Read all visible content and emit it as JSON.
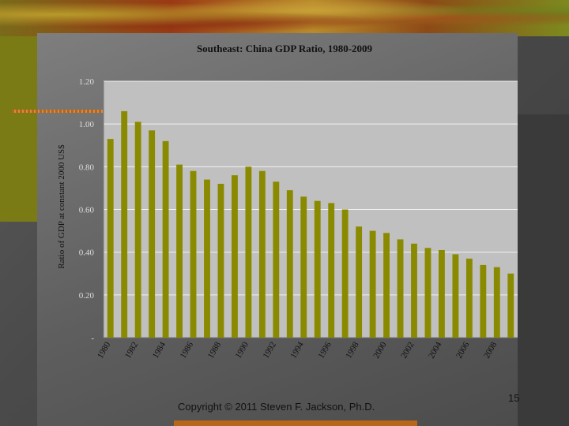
{
  "chart_data": {
    "type": "bar",
    "title": "Southeast: China GDP Ratio, 1980-2009",
    "xlabel": "",
    "ylabel": "Ratio of GDP at constant 2000 US$",
    "ylim": [
      0,
      1.2
    ],
    "yticks": [
      "-",
      "0.20",
      "0.40",
      "0.60",
      "0.80",
      "1.00",
      "1.20"
    ],
    "categories": [
      "1980",
      "1981",
      "1982",
      "1983",
      "1984",
      "1985",
      "1986",
      "1987",
      "1988",
      "1989",
      "1990",
      "1991",
      "1992",
      "1993",
      "1994",
      "1995",
      "1996",
      "1997",
      "1998",
      "1999",
      "2000",
      "2001",
      "2002",
      "2003",
      "2004",
      "2005",
      "2006",
      "2007",
      "2008",
      "2009"
    ],
    "xtick_labels": [
      "1980",
      "1982",
      "1984",
      "1986",
      "1988",
      "1990",
      "1992",
      "1994",
      "1996",
      "1998",
      "2000",
      "2002",
      "2004",
      "2006",
      "2008"
    ],
    "values": [
      0.93,
      1.06,
      1.01,
      0.97,
      0.92,
      0.81,
      0.78,
      0.74,
      0.72,
      0.76,
      0.8,
      0.78,
      0.73,
      0.69,
      0.66,
      0.64,
      0.63,
      0.6,
      0.52,
      0.5,
      0.49,
      0.46,
      0.44,
      0.42,
      0.41,
      0.39,
      0.37,
      0.34,
      0.33,
      0.3
    ],
    "bar_color": "#8a8a00",
    "plot_bg": "#c0c0c0",
    "grid": true
  },
  "footer": {
    "copyright": "Copyright © 2011 Steven F. Jackson, Ph.D.",
    "page_number": "15"
  }
}
